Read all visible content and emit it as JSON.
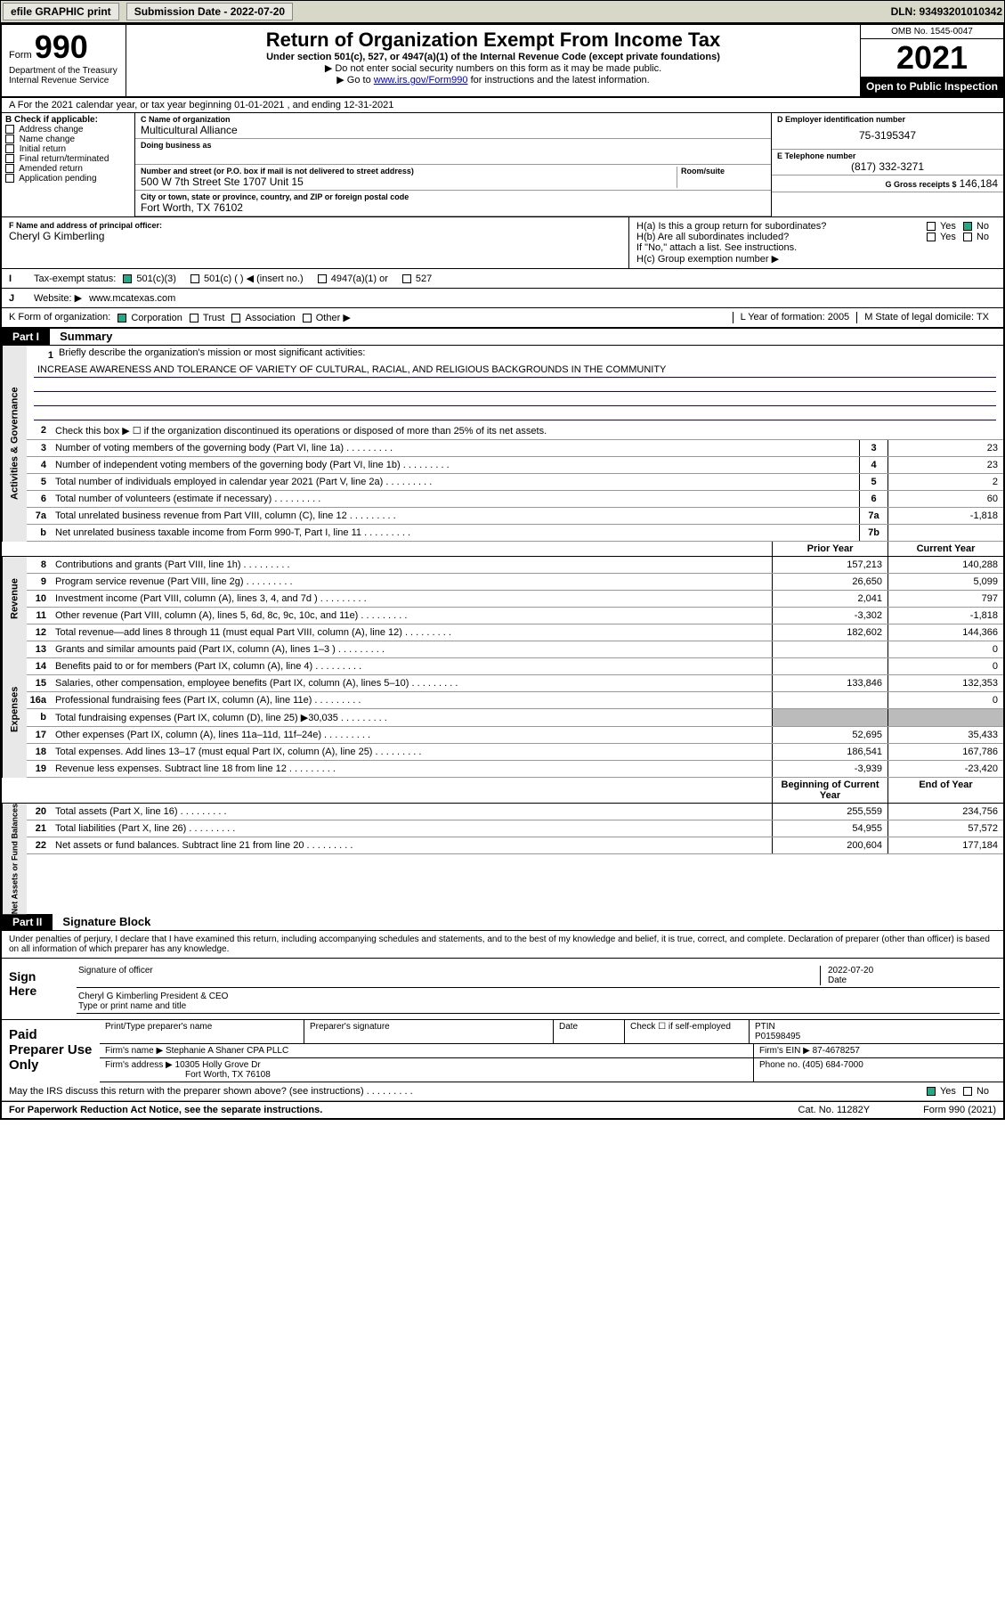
{
  "topbar": {
    "efile": "efile GRAPHIC print",
    "submission_label": "Submission Date - 2022-07-20",
    "dln": "DLN: 93493201010342"
  },
  "header": {
    "form_label": "Form",
    "form_number": "990",
    "dept": "Department of the Treasury Internal Revenue Service",
    "title": "Return of Organization Exempt From Income Tax",
    "subtitle": "Under section 501(c), 527, or 4947(a)(1) of the Internal Revenue Code (except private foundations)",
    "instr1": "▶ Do not enter social security numbers on this form as it may be made public.",
    "instr2_pre": "▶ Go to ",
    "instr2_link": "www.irs.gov/Form990",
    "instr2_post": " for instructions and the latest information.",
    "omb": "OMB No. 1545-0047",
    "year": "2021",
    "inspect": "Open to Public Inspection"
  },
  "row_a": "A For the 2021 calendar year, or tax year beginning 01-01-2021   , and ending 12-31-2021",
  "box_b": {
    "label": "B Check if applicable:",
    "opts": [
      "Address change",
      "Name change",
      "Initial return",
      "Final return/terminated",
      "Amended return",
      "Application pending"
    ]
  },
  "box_c": {
    "name_label": "C Name of organization",
    "name": "Multicultural Alliance",
    "dba_label": "Doing business as",
    "addr_label": "Number and street (or P.O. box if mail is not delivered to street address)",
    "addr": "500 W 7th Street Ste 1707 Unit 15",
    "room_label": "Room/suite",
    "city_label": "City or town, state or province, country, and ZIP or foreign postal code",
    "city": "Fort Worth, TX  76102"
  },
  "box_d": {
    "label": "D Employer identification number",
    "ein": "75-3195347",
    "phone_label": "E Telephone number",
    "phone": "(817) 332-3271",
    "gross_label": "G Gross receipts $",
    "gross": "146,184"
  },
  "box_f": {
    "label": "F Name and address of principal officer:",
    "name": "Cheryl G Kimberling"
  },
  "box_h": {
    "ha": "H(a)  Is this a group return for subordinates?",
    "hb": "H(b)  Are all subordinates included?",
    "hb_note": "If \"No,\" attach a list. See instructions.",
    "hc": "H(c)  Group exemption number ▶",
    "yes": "Yes",
    "no": "No"
  },
  "row_i": {
    "label": "Tax-exempt status:",
    "opts": [
      "501(c)(3)",
      "501(c) (  ) ◀ (insert no.)",
      "4947(a)(1) or",
      "527"
    ]
  },
  "row_j": {
    "label": "Website: ▶",
    "val": "www.mcatexas.com"
  },
  "row_k": {
    "label": "K Form of organization:",
    "opts": [
      "Corporation",
      "Trust",
      "Association",
      "Other ▶"
    ],
    "l_label": "L Year of formation:",
    "l_val": "2005",
    "m_label": "M State of legal domicile:",
    "m_val": "TX"
  },
  "part1": {
    "header": "Part I",
    "title": "Summary",
    "q1": "Briefly describe the organization's mission or most significant activities:",
    "mission": "INCREASE AWARENESS AND TOLERANCE OF VARIETY OF CULTURAL, RACIAL, AND RELIGIOUS BACKGROUNDS IN THE COMMUNITY",
    "q2": "Check this box ▶ ☐ if the organization discontinued its operations or disposed of more than 25% of its net assets.",
    "vlabels": [
      "Activities & Governance",
      "Revenue",
      "Expenses",
      "Net Assets or Fund Balances"
    ],
    "col_hdrs": [
      "Prior Year",
      "Current Year",
      "Beginning of Current Year",
      "End of Year"
    ],
    "lines_gov": [
      {
        "n": "3",
        "t": "Number of voting members of the governing body (Part VI, line 1a)",
        "box": "3",
        "v": "23"
      },
      {
        "n": "4",
        "t": "Number of independent voting members of the governing body (Part VI, line 1b)",
        "box": "4",
        "v": "23"
      },
      {
        "n": "5",
        "t": "Total number of individuals employed in calendar year 2021 (Part V, line 2a)",
        "box": "5",
        "v": "2"
      },
      {
        "n": "6",
        "t": "Total number of volunteers (estimate if necessary)",
        "box": "6",
        "v": "60"
      },
      {
        "n": "7a",
        "t": "Total unrelated business revenue from Part VIII, column (C), line 12",
        "box": "7a",
        "v": "-1,818"
      },
      {
        "n": "b",
        "t": "Net unrelated business taxable income from Form 990-T, Part I, line 11",
        "box": "7b",
        "v": ""
      }
    ],
    "lines_rev": [
      {
        "n": "8",
        "t": "Contributions and grants (Part VIII, line 1h)",
        "py": "157,213",
        "cy": "140,288"
      },
      {
        "n": "9",
        "t": "Program service revenue (Part VIII, line 2g)",
        "py": "26,650",
        "cy": "5,099"
      },
      {
        "n": "10",
        "t": "Investment income (Part VIII, column (A), lines 3, 4, and 7d )",
        "py": "2,041",
        "cy": "797"
      },
      {
        "n": "11",
        "t": "Other revenue (Part VIII, column (A), lines 5, 6d, 8c, 9c, 10c, and 11e)",
        "py": "-3,302",
        "cy": "-1,818"
      },
      {
        "n": "12",
        "t": "Total revenue—add lines 8 through 11 (must equal Part VIII, column (A), line 12)",
        "py": "182,602",
        "cy": "144,366"
      }
    ],
    "lines_exp": [
      {
        "n": "13",
        "t": "Grants and similar amounts paid (Part IX, column (A), lines 1–3 )",
        "py": "",
        "cy": "0"
      },
      {
        "n": "14",
        "t": "Benefits paid to or for members (Part IX, column (A), line 4)",
        "py": "",
        "cy": "0"
      },
      {
        "n": "15",
        "t": "Salaries, other compensation, employee benefits (Part IX, column (A), lines 5–10)",
        "py": "133,846",
        "cy": "132,353"
      },
      {
        "n": "16a",
        "t": "Professional fundraising fees (Part IX, column (A), line 11e)",
        "py": "",
        "cy": "0"
      },
      {
        "n": "b",
        "t": "Total fundraising expenses (Part IX, column (D), line 25) ▶30,035",
        "py": "shade",
        "cy": "shade"
      },
      {
        "n": "17",
        "t": "Other expenses (Part IX, column (A), lines 11a–11d, 11f–24e)",
        "py": "52,695",
        "cy": "35,433"
      },
      {
        "n": "18",
        "t": "Total expenses. Add lines 13–17 (must equal Part IX, column (A), line 25)",
        "py": "186,541",
        "cy": "167,786"
      },
      {
        "n": "19",
        "t": "Revenue less expenses. Subtract line 18 from line 12",
        "py": "-3,939",
        "cy": "-23,420"
      }
    ],
    "lines_net": [
      {
        "n": "20",
        "t": "Total assets (Part X, line 16)",
        "py": "255,559",
        "cy": "234,756"
      },
      {
        "n": "21",
        "t": "Total liabilities (Part X, line 26)",
        "py": "54,955",
        "cy": "57,572"
      },
      {
        "n": "22",
        "t": "Net assets or fund balances. Subtract line 21 from line 20",
        "py": "200,604",
        "cy": "177,184"
      }
    ]
  },
  "part2": {
    "header": "Part II",
    "title": "Signature Block",
    "declaration": "Under penalties of perjury, I declare that I have examined this return, including accompanying schedules and statements, and to the best of my knowledge and belief, it is true, correct, and complete. Declaration of preparer (other than officer) is based on all information of which preparer has any knowledge.",
    "sign_here": "Sign Here",
    "sig_officer": "Signature of officer",
    "sig_date": "2022-07-20",
    "date_label": "Date",
    "officer_name": "Cheryl G Kimberling President & CEO",
    "officer_title_label": "Type or print name and title",
    "paid": "Paid Preparer Use Only",
    "prep_name_label": "Print/Type preparer's name",
    "prep_sig_label": "Preparer's signature",
    "prep_date_label": "Date",
    "self_emp": "Check ☐ if self-employed",
    "ptin_label": "PTIN",
    "ptin": "P01598495",
    "firm_name_label": "Firm's name   ▶",
    "firm_name": "Stephanie A Shaner CPA PLLC",
    "firm_ein_label": "Firm's EIN ▶",
    "firm_ein": "87-4678257",
    "firm_addr_label": "Firm's address ▶",
    "firm_addr": "10305 Holly Grove Dr",
    "firm_city": "Fort Worth, TX  76108",
    "firm_phone_label": "Phone no.",
    "firm_phone": "(405) 684-7000",
    "discuss": "May the IRS discuss this return with the preparer shown above? (see instructions)",
    "yes": "Yes",
    "no": "No"
  },
  "footer": {
    "left": "For Paperwork Reduction Act Notice, see the separate instructions.",
    "mid": "Cat. No. 11282Y",
    "right": "Form 990 (2021)"
  }
}
